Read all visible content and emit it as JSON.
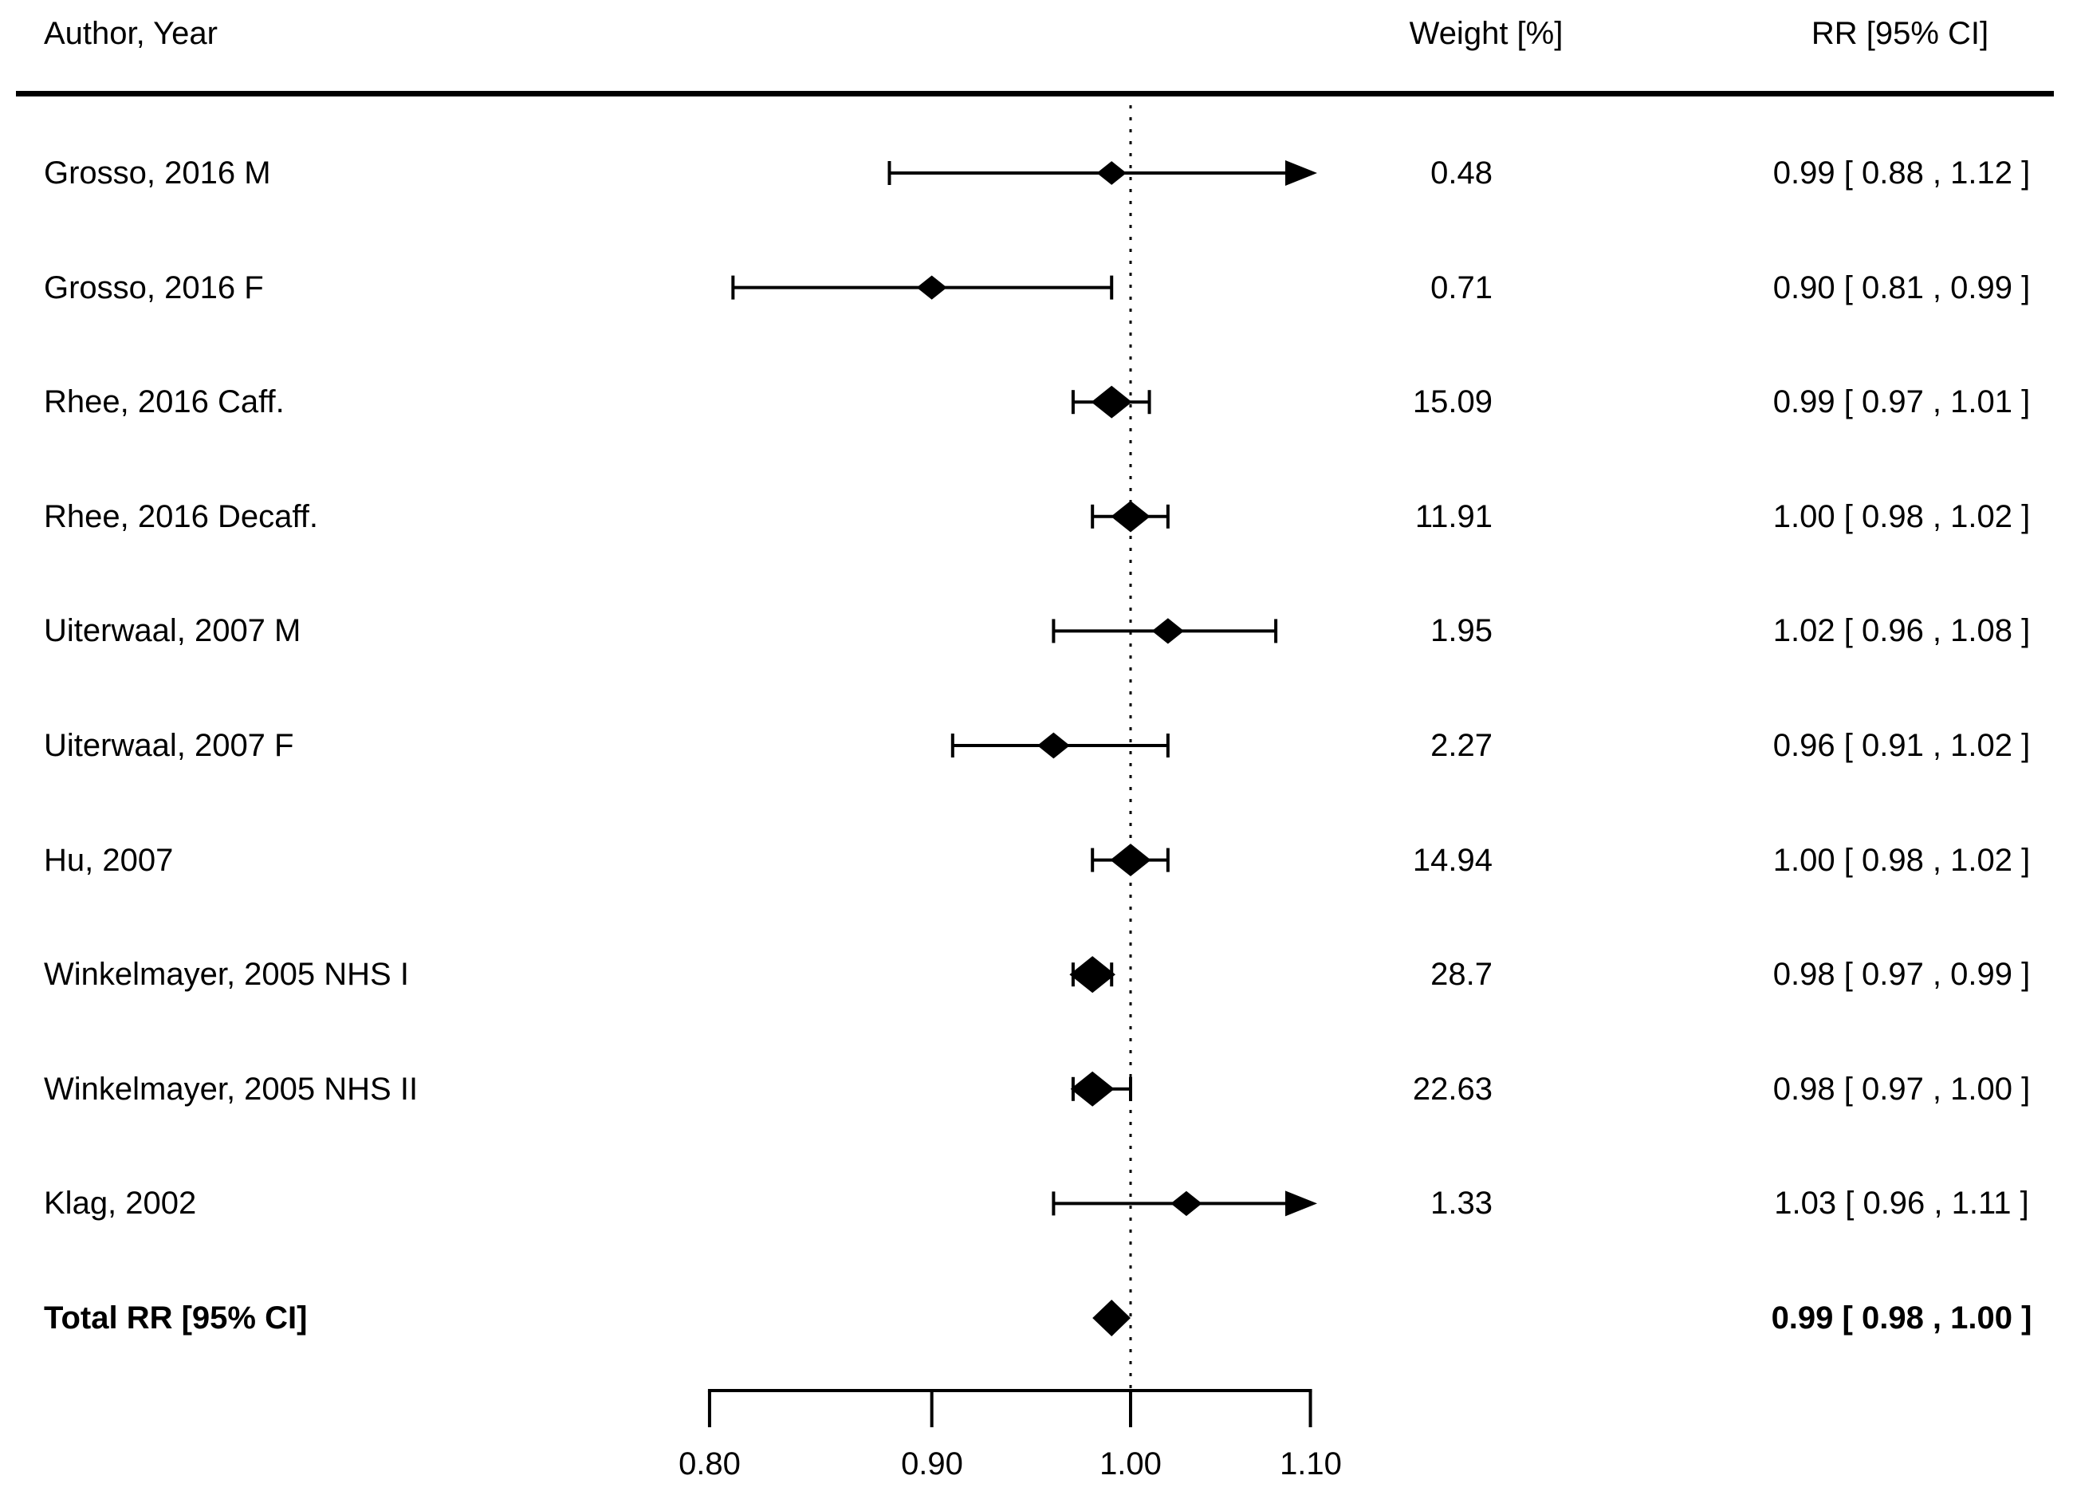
{
  "header": {
    "author": "Author, Year",
    "weight": "Weight [%]",
    "rr": "RR [95% CI]"
  },
  "chart_data": {
    "type": "forest",
    "effect_measure": "RR",
    "x_axis": {
      "scale": "log",
      "range": [
        0.8,
        1.1
      ],
      "ticks": [
        0.8,
        0.9,
        1.0,
        1.1
      ],
      "tick_labels": [
        "0.80",
        "0.90",
        "1.00",
        "1.10"
      ],
      "reference_line": 1.0,
      "reference_line_style": "dotted"
    },
    "columns": [
      "Author, Year",
      "Weight [%]",
      "RR [95% CI]"
    ],
    "studies": [
      {
        "label": "Grosso, 2016 M",
        "weight": 0.48,
        "weight_text": "0.48",
        "est": 0.99,
        "lo": 0.88,
        "hi": 1.12,
        "hi_clipped": true,
        "rr_text": "0.99 [ 0.88 , 1.12 ]"
      },
      {
        "label": "Grosso, 2016 F",
        "weight": 0.71,
        "weight_text": "0.71",
        "est": 0.9,
        "lo": 0.81,
        "hi": 0.99,
        "hi_clipped": false,
        "rr_text": "0.90 [ 0.81 , 0.99 ]"
      },
      {
        "label": "Rhee, 2016 Caff.",
        "weight": 15.09,
        "weight_text": "15.09",
        "est": 0.99,
        "lo": 0.97,
        "hi": 1.01,
        "hi_clipped": false,
        "rr_text": "0.99 [ 0.97 , 1.01 ]"
      },
      {
        "label": "Rhee, 2016 Decaff.",
        "weight": 11.91,
        "weight_text": "11.91",
        "est": 1.0,
        "lo": 0.98,
        "hi": 1.02,
        "hi_clipped": false,
        "rr_text": "1.00 [ 0.98 , 1.02 ]"
      },
      {
        "label": "Uiterwaal, 2007 M",
        "weight": 1.95,
        "weight_text": "1.95",
        "est": 1.02,
        "lo": 0.96,
        "hi": 1.08,
        "hi_clipped": false,
        "rr_text": "1.02 [ 0.96 , 1.08 ]"
      },
      {
        "label": "Uiterwaal, 2007 F",
        "weight": 2.27,
        "weight_text": "2.27",
        "est": 0.96,
        "lo": 0.91,
        "hi": 1.02,
        "hi_clipped": false,
        "rr_text": "0.96 [ 0.91 , 1.02 ]"
      },
      {
        "label": "Hu, 2007",
        "weight": 14.94,
        "weight_text": "14.94",
        "est": 1.0,
        "lo": 0.98,
        "hi": 1.02,
        "hi_clipped": false,
        "rr_text": "1.00 [ 0.98 , 1.02 ]"
      },
      {
        "label": "Winkelmayer, 2005 NHS I",
        "weight": 28.7,
        "weight_text": "28.7",
        "est": 0.98,
        "lo": 0.97,
        "hi": 0.99,
        "hi_clipped": false,
        "rr_text": "0.98 [ 0.97 , 0.99 ]"
      },
      {
        "label": "Winkelmayer, 2005 NHS II",
        "weight": 22.63,
        "weight_text": "22.63",
        "est": 0.98,
        "lo": 0.97,
        "hi": 1.0,
        "hi_clipped": false,
        "rr_text": "0.98 [ 0.97 , 1.00 ]"
      },
      {
        "label": "Klag, 2002",
        "weight": 1.33,
        "weight_text": "1.33",
        "est": 1.03,
        "lo": 0.96,
        "hi": 1.11,
        "hi_clipped": true,
        "rr_text": "1.03 [ 0.96 , 1.11 ]"
      }
    ],
    "total": {
      "label": "Total RR [95% CI]",
      "est": 0.99,
      "lo": 0.98,
      "hi": 1.0,
      "rr_text": "0.99 [ 0.98 , 1.00 ]"
    },
    "colors": {
      "foreground": "#000000",
      "background": "#ffffff"
    }
  }
}
